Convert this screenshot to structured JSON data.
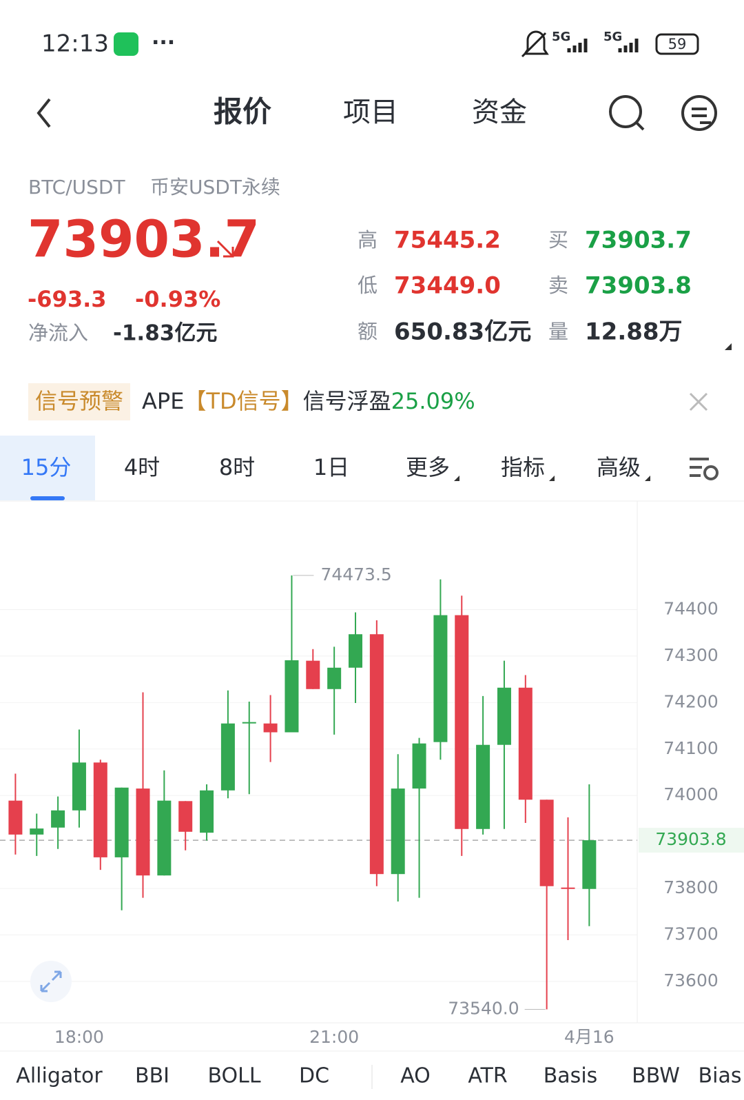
{
  "status": {
    "time": "12:13",
    "network": "5G",
    "battery": "59"
  },
  "nav": {
    "tabs": [
      "报价",
      "项目",
      "资金"
    ]
  },
  "quote": {
    "pair": "BTC/USDT",
    "market": "币安USDT永续",
    "price": "73903.7",
    "change": "-693.3",
    "change_pct": "-0.93%",
    "net_inflow_label": "净流入",
    "net_inflow": "-1.83亿元",
    "stats": [
      {
        "label": "高",
        "value": "75445.2",
        "color": "#e0342f"
      },
      {
        "label": "买",
        "value": "73903.7",
        "color": "#1aa046"
      },
      {
        "label": "低",
        "value": "73449.0",
        "color": "#e0342f"
      },
      {
        "label": "卖",
        "value": "73903.8",
        "color": "#1aa046"
      },
      {
        "label": "额",
        "value": "650.83亿元",
        "color": "#2b2f36"
      },
      {
        "label": "量",
        "value": "12.88万",
        "color": "#2b2f36"
      }
    ]
  },
  "signal": {
    "tag": "信号预警",
    "symbol": "APE",
    "signal_name": "【TD信号】",
    "text": "信号浮盈",
    "gain": "25.09%"
  },
  "intervals": [
    "15分",
    "4时",
    "8时",
    "1日",
    "更多",
    "指标",
    "高级"
  ],
  "indicators": [
    "Alligator",
    "BBI",
    "BOLL",
    "DC",
    "AO",
    "ATR",
    "Basis",
    "BBW",
    "Bias"
  ],
  "chart_data": {
    "type": "candlestick",
    "categories": [
      null,
      null,
      null,
      "18:00",
      null,
      null,
      null,
      null,
      null,
      null,
      null,
      null,
      null,
      null,
      null,
      "21:00",
      null,
      null,
      null,
      null,
      null,
      null,
      null,
      null,
      null,
      null,
      null,
      "4月16"
    ],
    "open": [
      73989,
      73916,
      73931,
      73968,
      74071,
      73867,
      74015,
      73828,
      73988,
      73920,
      74011,
      74155,
      74155,
      74136,
      74290,
      74229,
      74275,
      74347,
      73831,
      74015,
      74115,
      74388,
      73928,
      74109,
      74232,
      73991,
      73802,
      73799
    ],
    "high": [
      74047,
      73961,
      73998,
      74142,
      74077,
      74017,
      74222,
      74054,
      73988,
      74024,
      74226,
      74202,
      74216,
      74473.5,
      74315,
      74320,
      74394,
      74377,
      74089,
      74124,
      74465,
      74430,
      74214,
      74290,
      74259,
      73991,
      73953,
      74024
    ],
    "low": [
      73873,
      73870,
      73885,
      73931,
      73840,
      73753,
      73780,
      73828,
      73882,
      73903,
      73994,
      74003,
      74072,
      74136,
      74229,
      74131,
      74199,
      73805,
      73772,
      73780,
      74077,
      73870,
      73916,
      73928,
      73941,
      73540,
      73689,
      73719
    ],
    "close": [
      73916,
      73929,
      73968,
      74071,
      73867,
      74017,
      73828,
      73989,
      73922,
      74011,
      74155,
      74158,
      74136,
      74291,
      74229,
      74275,
      74347,
      73831,
      74015,
      74112,
      74388,
      73928,
      74109,
      74232,
      73991,
      73805,
      73799,
      73903.8
    ],
    "annotations": [
      "74473.5",
      "73540.0"
    ],
    "last_price": 73903.8,
    "ylim": [
      73511,
      74632
    ],
    "yticks": [
      73600,
      73700,
      73800,
      74000,
      74100,
      74200,
      74300,
      74400
    ],
    "grid": true,
    "colors": {
      "up": "#33a852",
      "down": "#e5404d"
    }
  }
}
